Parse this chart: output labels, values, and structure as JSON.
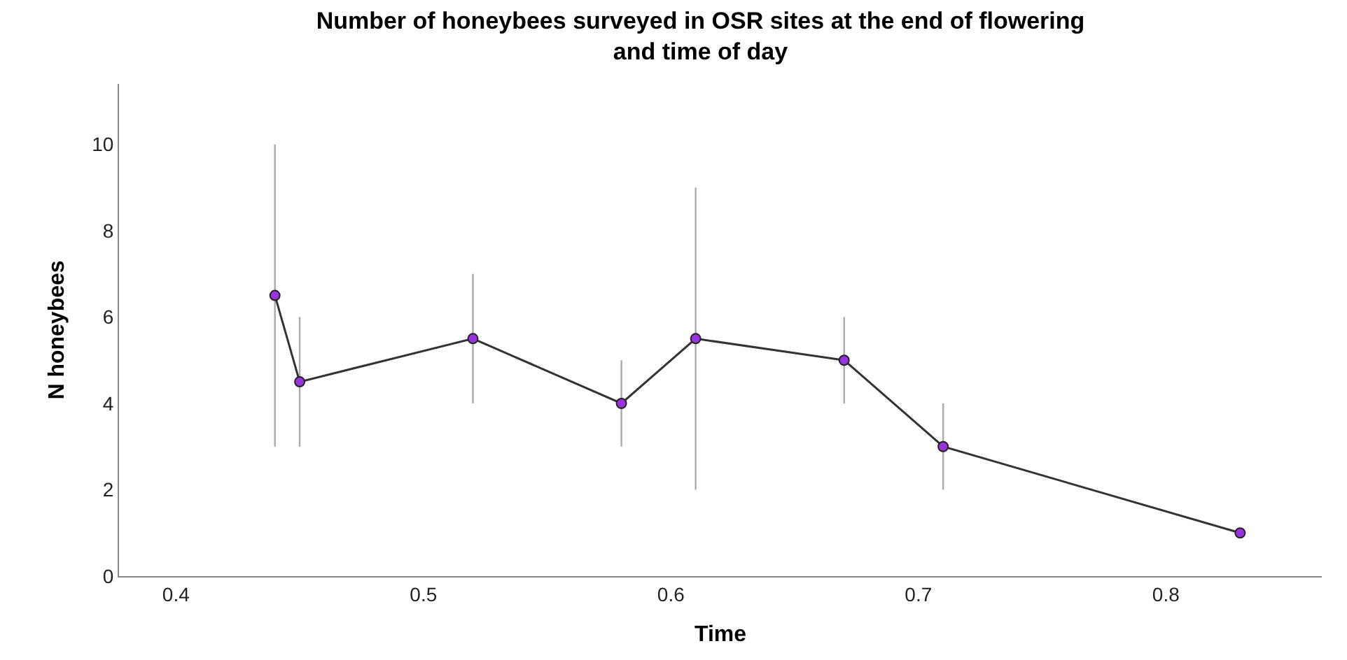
{
  "chart_data": {
    "type": "line",
    "title": "Number of honeybees surveyed in OSR sites at the end of flowering\nand time of day",
    "xlabel": "Time",
    "ylabel": "N honeybees",
    "x": [
      0.44,
      0.45,
      0.52,
      0.58,
      0.61,
      0.67,
      0.71,
      0.83
    ],
    "series": [
      {
        "color": "#9933dd",
        "values": [
          6.5,
          4.5,
          5.5,
          4,
          5.5,
          5,
          3,
          1
        ],
        "errors": [
          [
            3,
            10
          ],
          [
            3,
            6
          ],
          [
            4,
            7
          ],
          [
            3,
            5
          ],
          [
            2,
            9
          ],
          [
            4,
            6
          ],
          [
            2,
            4
          ],
          null
        ]
      }
    ],
    "xlim": [
      0.377,
      0.863
    ],
    "xticks": [
      0.4,
      0.5,
      0.6,
      0.7,
      0.8
    ],
    "ylim": [
      0,
      11.4
    ],
    "yticks": [
      0,
      2,
      4,
      6,
      8,
      10
    ],
    "grid": false,
    "marker": "circle",
    "line_style": "solid"
  }
}
